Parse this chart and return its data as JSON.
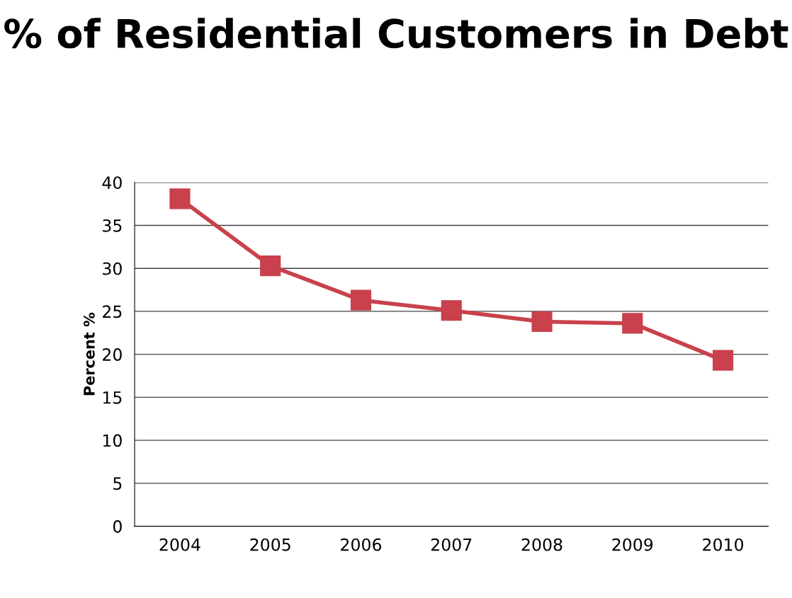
{
  "chart_data": {
    "type": "line",
    "title": "% of Residential Customers in Debt",
    "ylabel": "Percent %",
    "categories": [
      "2004",
      "2005",
      "2006",
      "2007",
      "2008",
      "2009",
      "2010"
    ],
    "series": [
      {
        "color": "#c9414c",
        "values": [
          38.1,
          30.3,
          26.3,
          25.1,
          23.8,
          23.6,
          19.3
        ]
      }
    ],
    "ylim": [
      0,
      40
    ],
    "yticks": [
      0,
      5,
      10,
      15,
      20,
      25,
      30,
      35,
      40
    ],
    "grid": "y",
    "marker": "square",
    "line_style": "solid"
  }
}
